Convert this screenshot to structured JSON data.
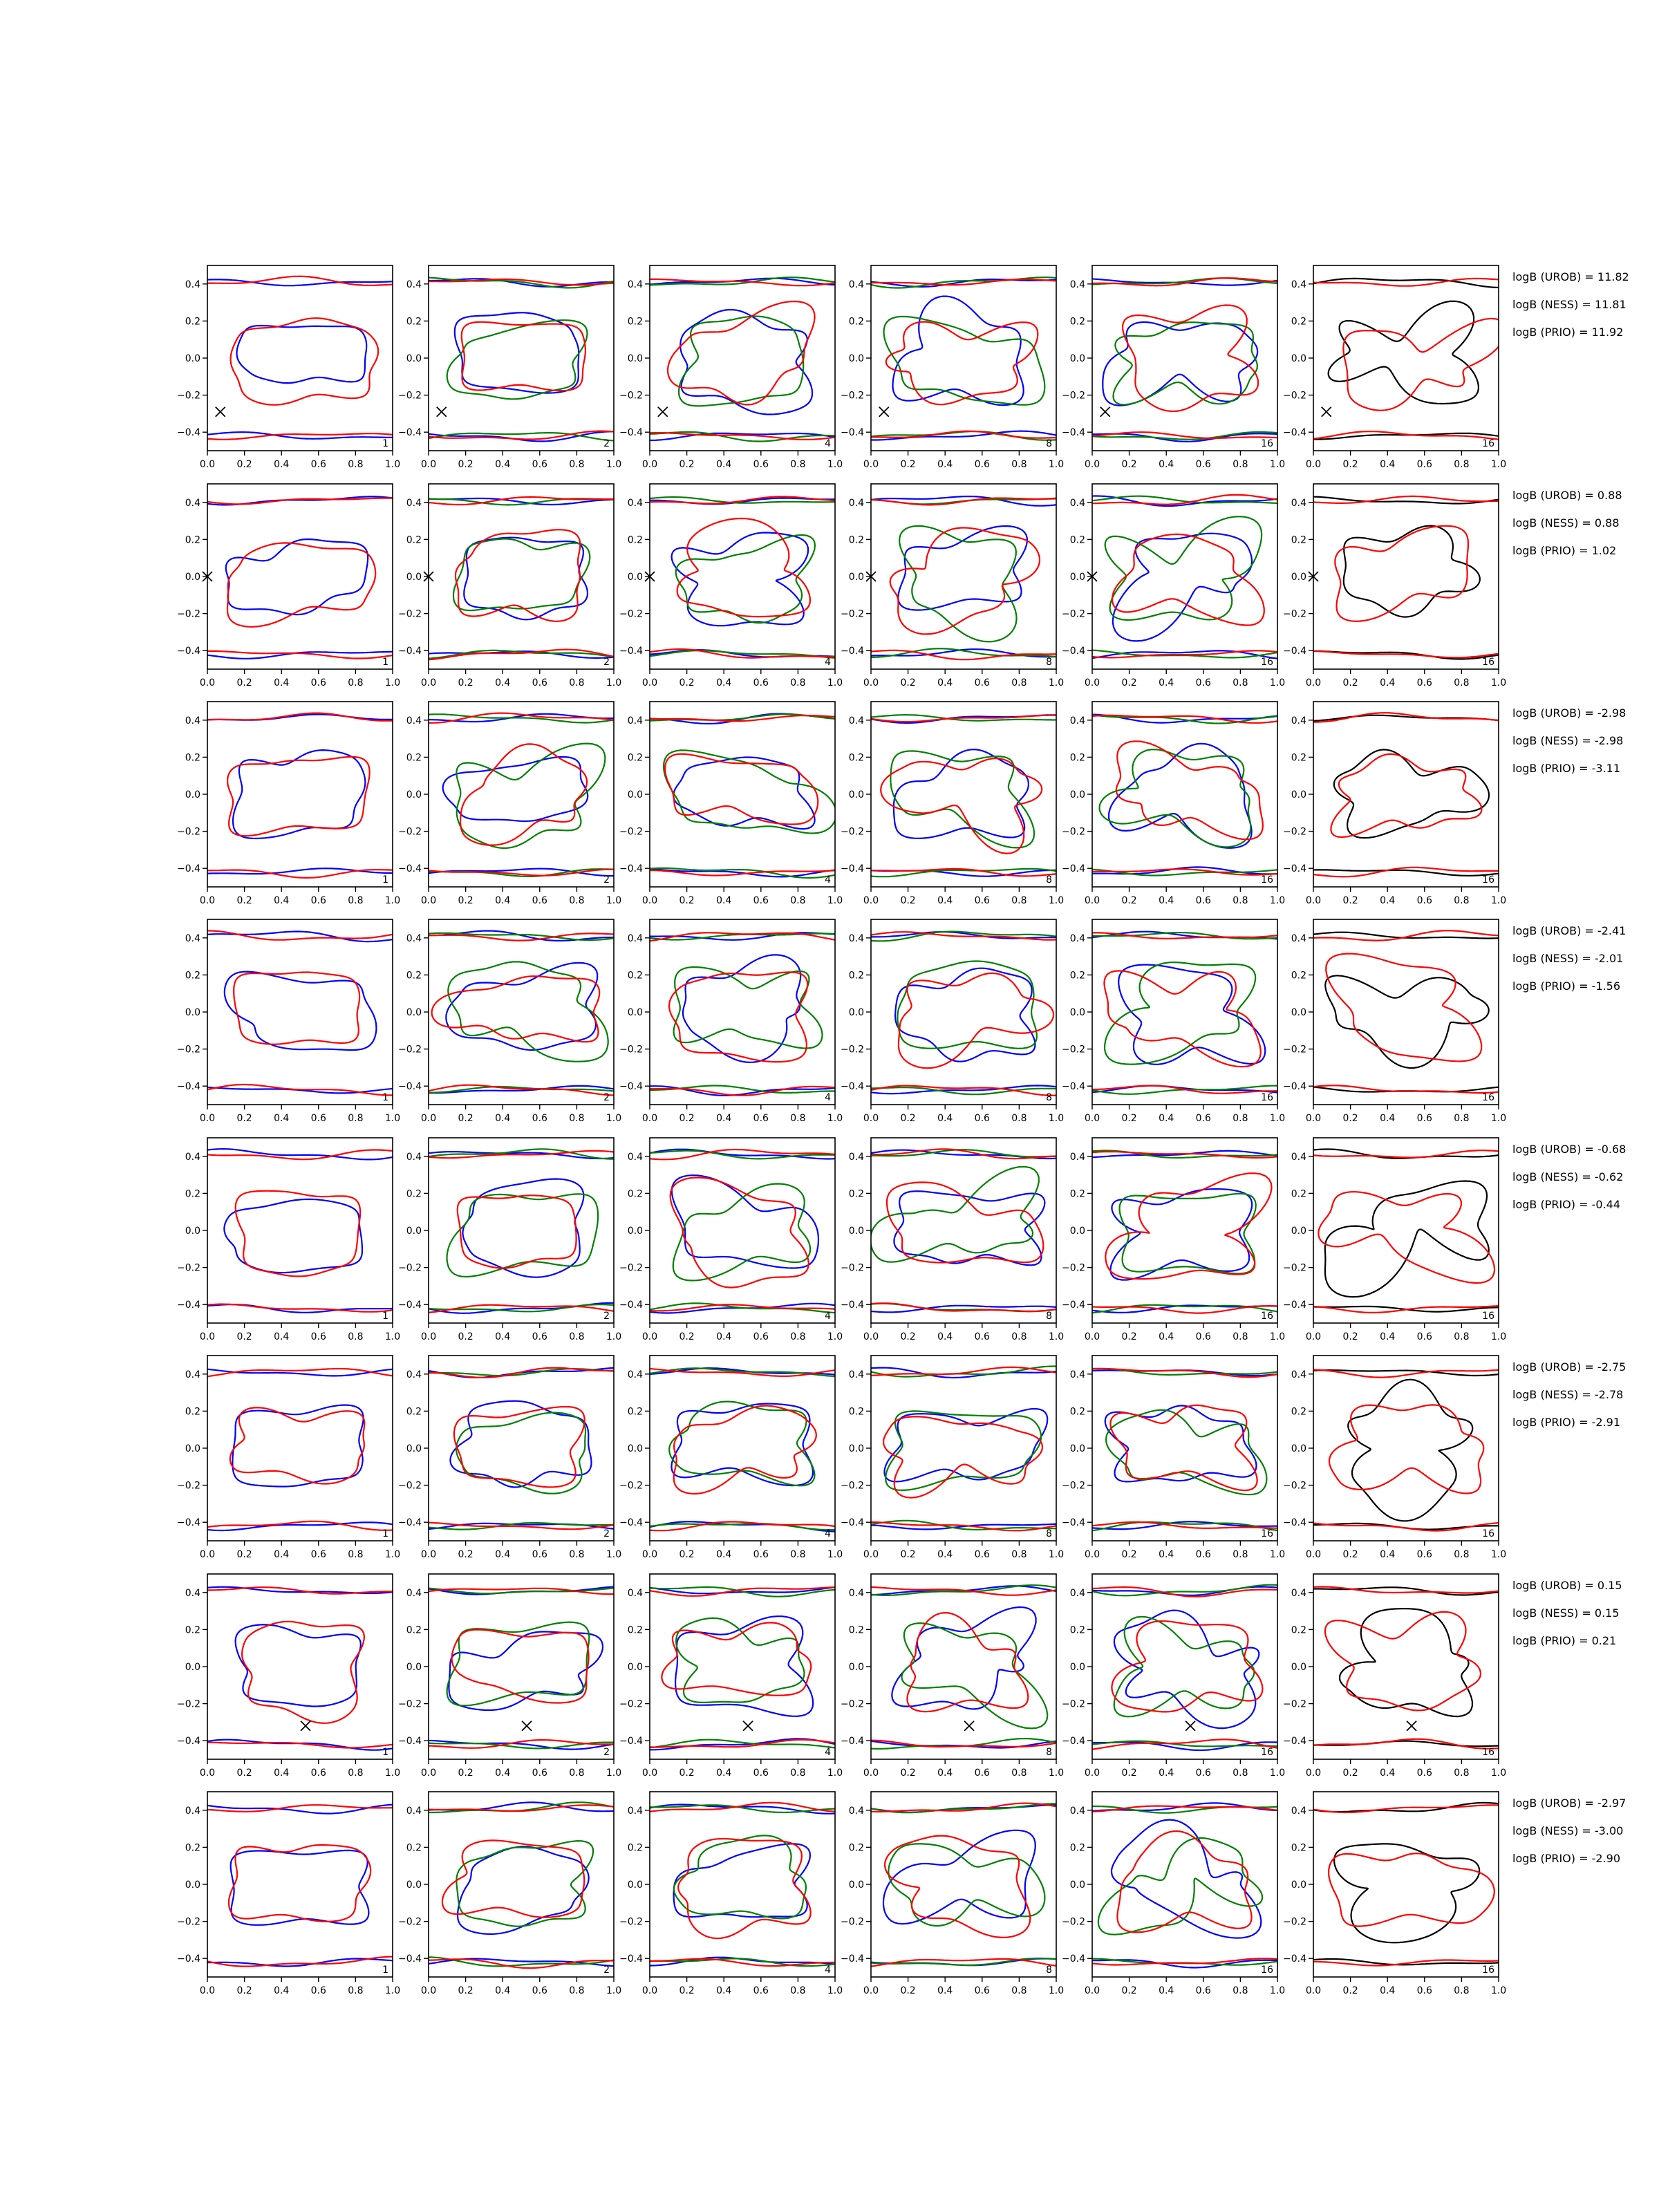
{
  "figure": {
    "colors": {
      "blue": "#0000ff",
      "green": "#008000",
      "red": "#ff0000",
      "black": "#000000"
    },
    "column_labels": [
      "1",
      "2",
      "4",
      "8",
      "16",
      "16"
    ]
  },
  "chart_data": {
    "type": "line",
    "layout": "8 rows x 6 columns of small multiples; columns 1-5 overlay blue/green/red closed contours, column 6 shows black/red contours; an 'x' marker in some panels",
    "x_axis": {
      "range": [
        0.0,
        1.0
      ],
      "ticks": [
        "0.0",
        "0.2",
        "0.4",
        "0.6",
        "0.8",
        "1.0"
      ]
    },
    "y_axis": {
      "range": [
        -0.5,
        0.5
      ],
      "ticks": [
        "0.4",
        "0.2",
        "0.0",
        "−0.2",
        "−0.4"
      ]
    },
    "grid": false,
    "rows": [
      {
        "marker": [
          0.07,
          -0.29
        ],
        "logB": [
          "logB (UROB) = 11.82",
          "logB (NESS) = 11.81",
          "logB (PRIO) = 11.92"
        ]
      },
      {
        "marker": [
          0.0,
          0.0
        ],
        "logB": [
          "logB (UROB) = 0.88",
          "logB (NESS) = 0.88",
          "logB (PRIO) = 1.02"
        ]
      },
      {
        "marker": null,
        "logB": [
          "logB (UROB) = -2.98",
          "logB (NESS) = -2.98",
          "logB (PRIO) = -3.11"
        ]
      },
      {
        "marker": null,
        "logB": [
          "logB (UROB) = -2.41",
          "logB (NESS) = -2.01",
          "logB (PRIO) = -1.56"
        ]
      },
      {
        "marker": null,
        "logB": [
          "logB (UROB) = -0.68",
          "logB (NESS) = -0.62",
          "logB (PRIO) = -0.44"
        ]
      },
      {
        "marker": null,
        "logB": [
          "logB (UROB) = -2.75",
          "logB (NESS) = -2.78",
          "logB (PRIO) = -2.91"
        ]
      },
      {
        "marker": [
          0.53,
          -0.32
        ],
        "logB": [
          "logB (UROB) = 0.15",
          "logB (NESS) = 0.15",
          "logB (PRIO) = 0.21"
        ]
      },
      {
        "marker": null,
        "logB": [
          "logB (UROB) = -2.97",
          "logB (NESS) = -3.00",
          "logB (PRIO) = -2.90"
        ]
      }
    ]
  }
}
